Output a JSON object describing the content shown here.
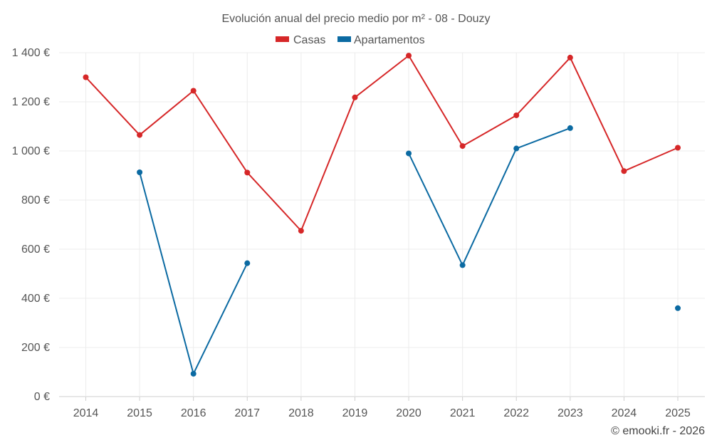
{
  "chart_data": {
    "type": "line",
    "title": "Evolución anual del precio medio por m² - 08 - Douzy",
    "xlabel": "",
    "ylabel": "",
    "categories": [
      "2014",
      "2015",
      "2016",
      "2017",
      "2018",
      "2019",
      "2020",
      "2021",
      "2022",
      "2023",
      "2024",
      "2025"
    ],
    "ylim": [
      0,
      1400
    ],
    "yticks": [
      0,
      200,
      400,
      600,
      800,
      1000,
      1200,
      1400
    ],
    "ytick_labels": [
      "0 €",
      "200 €",
      "400 €",
      "600 €",
      "800 €",
      "1 000 €",
      "1 200 €",
      "1 400 €"
    ],
    "grid": true,
    "legend_position": "top-center",
    "series": [
      {
        "name": "Casas",
        "color": "#d62728",
        "values": [
          1300,
          1065,
          1245,
          912,
          675,
          1218,
          1388,
          1020,
          1145,
          1380,
          918,
          1013
        ]
      },
      {
        "name": "Apartamentos",
        "color": "#0b6aa2",
        "values": [
          null,
          913,
          93,
          543,
          null,
          null,
          990,
          535,
          1010,
          1093,
          null,
          360
        ]
      }
    ],
    "credit": "© emooki.fr - 2026"
  }
}
